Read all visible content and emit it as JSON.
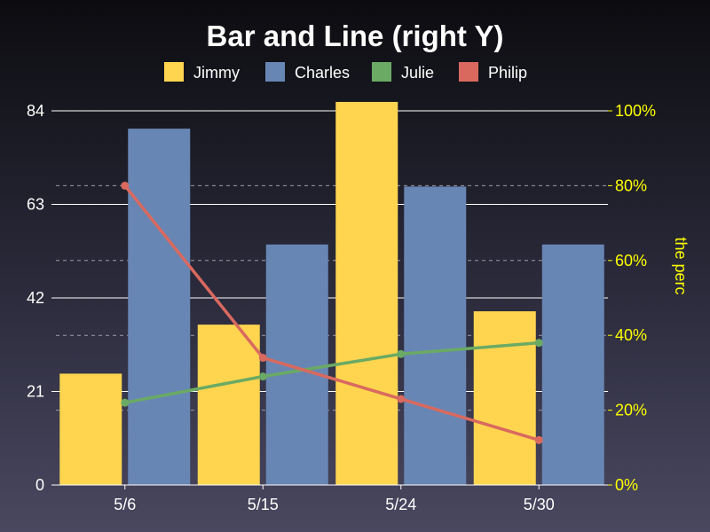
{
  "chart_data": {
    "type": "bar",
    "title": "Bar and Line (right Y)",
    "categories": [
      "5/6",
      "5/15",
      "5/24",
      "5/30"
    ],
    "bar_series": [
      {
        "name": "Jimmy",
        "color": "#ffd54f",
        "values": [
          25,
          36,
          86,
          39
        ]
      },
      {
        "name": "Charles",
        "color": "#6886b4",
        "values": [
          80,
          54,
          67,
          54
        ]
      }
    ],
    "line_series": [
      {
        "name": "Julie",
        "color": "#6aaa64",
        "axis": "right",
        "values": [
          22,
          29,
          35,
          38
        ]
      },
      {
        "name": "Philip",
        "color": "#d9695f",
        "axis": "right",
        "values": [
          80,
          34,
          23,
          12
        ]
      }
    ],
    "legend": [
      "Jimmy",
      "Charles",
      "Julie",
      "Philip"
    ],
    "legend_position": "top-center",
    "y_left": {
      "ticks": [
        0,
        21,
        42,
        63,
        84
      ],
      "tick_labels": [
        "0",
        "21",
        "42",
        "63",
        "84"
      ],
      "ylim": [
        0,
        84
      ],
      "grid": "solid"
    },
    "y_right": {
      "label": "the perc",
      "ticks": [
        0,
        20,
        40,
        60,
        80,
        100
      ],
      "tick_labels": [
        "0%",
        "20%",
        "40%",
        "60%",
        "80%",
        "100%"
      ],
      "ylim": [
        0,
        100
      ],
      "grid": "dashed",
      "color": "#ffff00"
    },
    "xlabel": ""
  }
}
